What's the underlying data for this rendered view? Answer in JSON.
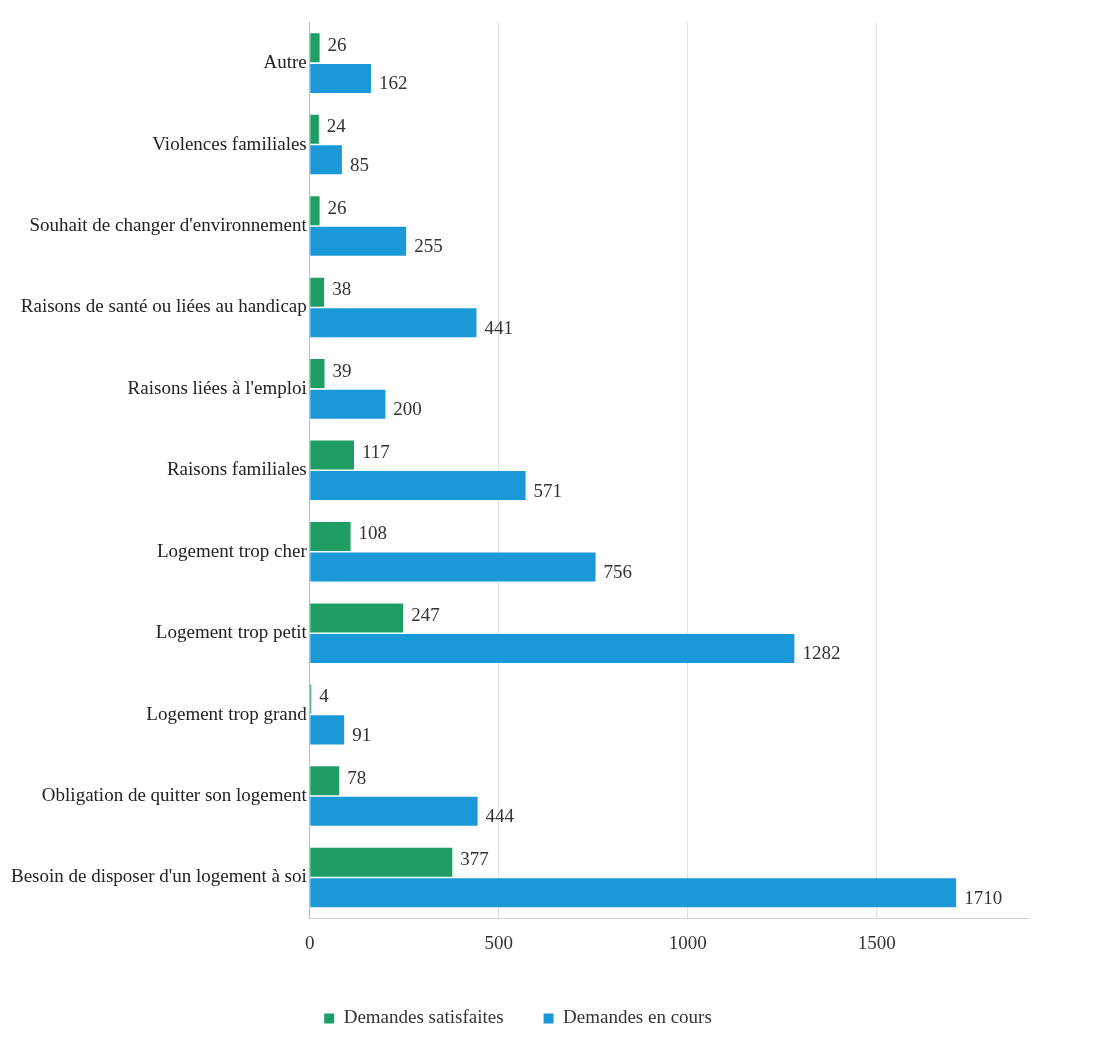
{
  "chart_data": {
    "type": "bar",
    "orientation": "horizontal",
    "categories": [
      "Autre",
      "Violences familiales",
      "Souhait de changer d'environnement",
      "Raisons de santé ou liées au handicap",
      "Raisons liées à l'emploi",
      "Raisons familiales",
      "Logement trop cher",
      "Logement trop petit",
      "Logement trop grand",
      "Obligation de quitter son logement",
      "Besoin de disposer d'un logement à soi"
    ],
    "series": [
      {
        "name": "Demandes satisfaites",
        "color": "#1e9e64",
        "values": [
          26,
          24,
          26,
          38,
          39,
          117,
          108,
          247,
          4,
          78,
          377
        ]
      },
      {
        "name": "Demandes en cours",
        "color": "#1a98d8",
        "values": [
          162,
          85,
          255,
          441,
          200,
          571,
          756,
          1282,
          91,
          444,
          1710
        ]
      }
    ],
    "xlim": [
      0,
      1900
    ],
    "xticks": [
      0,
      500,
      1000,
      1500
    ],
    "grid": "x",
    "legend": "bottom",
    "data_labels": true
  }
}
